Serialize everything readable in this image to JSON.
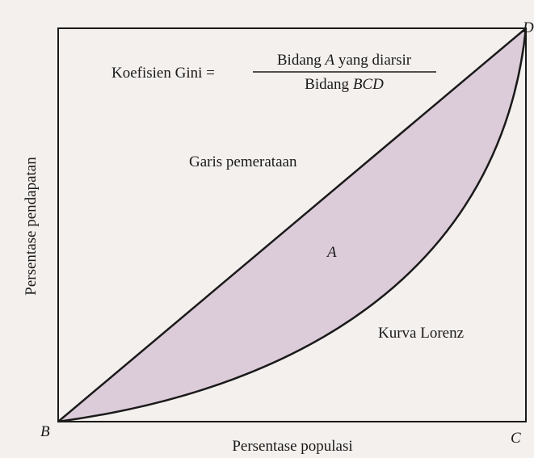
{
  "formula": {
    "label": "Koefisien Gini =",
    "numerator": [
      "Bidang ",
      "A",
      " yang diarsir"
    ],
    "denominator": [
      "Bidang ",
      "BCD"
    ]
  },
  "labels": {
    "equality_line": "Garis pemerataan",
    "area": "A",
    "lorenz_curve": "Kurva Lorenz"
  },
  "axes": {
    "y_label": "Persentase pendapatan",
    "x_label": "Persentase populasi"
  },
  "points": {
    "b": "B",
    "c": "C",
    "d": "D"
  }
}
